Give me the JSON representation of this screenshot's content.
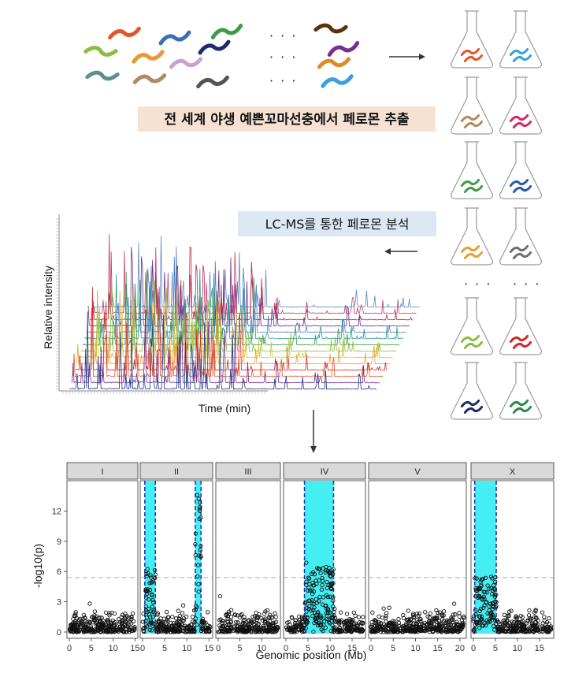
{
  "labels": {
    "extraction": "전 세계 야생 예쁜꼬마선충에서 페로몬 추출",
    "lcms": "LC-MS를 통한 페로몬 분석",
    "ellipsis": "· · ·"
  },
  "colors": {
    "extraction_box": "#f6e1d3",
    "lcms_box": "#dce8f3",
    "qtl_band": "#44eef2",
    "qtl_border": "#1a2fb8",
    "threshold": "#aaaaaa",
    "panel_strip": "#d9d9d9"
  },
  "worm_colors": [
    "#e0582a",
    "#3a6fb8",
    "#3f9a45",
    "#5a3210",
    "#8bbd45",
    "#e89a2e",
    "#1e2a6b",
    "#7a2f8a",
    "#5f8e8e",
    "#b08a62",
    "#c8a2c8",
    "#555555",
    "#e08a2a",
    "#3a9fe0"
  ],
  "flask_worm_colors": [
    [
      "#e0582a",
      "#3a9fe0"
    ],
    [
      "#b08a62",
      "#d02a6a"
    ],
    [
      "#3f9a45",
      "#2a5aa8"
    ],
    [
      "#e8a030",
      "#707070"
    ],
    [
      "#8bbd45",
      "#cc2a2a"
    ],
    [
      "#1e2a6b",
      "#2a8a4a"
    ]
  ],
  "chromatogram": {
    "xlabel": "Time (min)",
    "ylabel": "Relative intensity",
    "trace_colors": [
      "#1e3a8a",
      "#7a2f8a",
      "#e0582a",
      "#d02a2a",
      "#e8a030",
      "#c9c240",
      "#8bbd45",
      "#3f9a45",
      "#2a9a8a",
      "#4a7ac8",
      "#6a2f8a",
      "#b02a4a",
      "#c83a6a",
      "#5a8ac0"
    ]
  },
  "chart_data": {
    "type": "scatter",
    "xlabel": "Genomic position (Mb)",
    "ylabel": "-log10(p)",
    "ylim": [
      0,
      15
    ],
    "yticks": [
      0,
      3,
      6,
      9,
      12
    ],
    "threshold": 5.4,
    "panels": [
      {
        "name": "I",
        "xlim": [
          0,
          15.1
        ],
        "xticks": [
          "0",
          "5",
          "10",
          "15"
        ],
        "qtl": []
      },
      {
        "name": "II",
        "xlim": [
          0,
          15.3
        ],
        "xticks": [
          "0",
          "5",
          "10",
          "15"
        ],
        "qtl": [
          [
            0.5,
            2.9
          ],
          [
            11.9,
            13.2
          ]
        ]
      },
      {
        "name": "III",
        "xlim": [
          0,
          13.8
        ],
        "xticks": [
          "0",
          "5",
          "10"
        ],
        "qtl": []
      },
      {
        "name": "IV",
        "xlim": [
          0,
          17.5
        ],
        "xticks": [
          "0",
          "5",
          "10",
          "15"
        ],
        "qtl": [
          [
            4.2,
            10.8
          ]
        ]
      },
      {
        "name": "V",
        "xlim": [
          0,
          20.9
        ],
        "xticks": [
          "0",
          "5",
          "10",
          "15",
          "20"
        ],
        "qtl": []
      },
      {
        "name": "X",
        "xlim": [
          0,
          17.7
        ],
        "xticks": [
          "0",
          "5",
          "10",
          "15"
        ],
        "qtl": [
          [
            0.3,
            5.2
          ]
        ]
      }
    ]
  }
}
